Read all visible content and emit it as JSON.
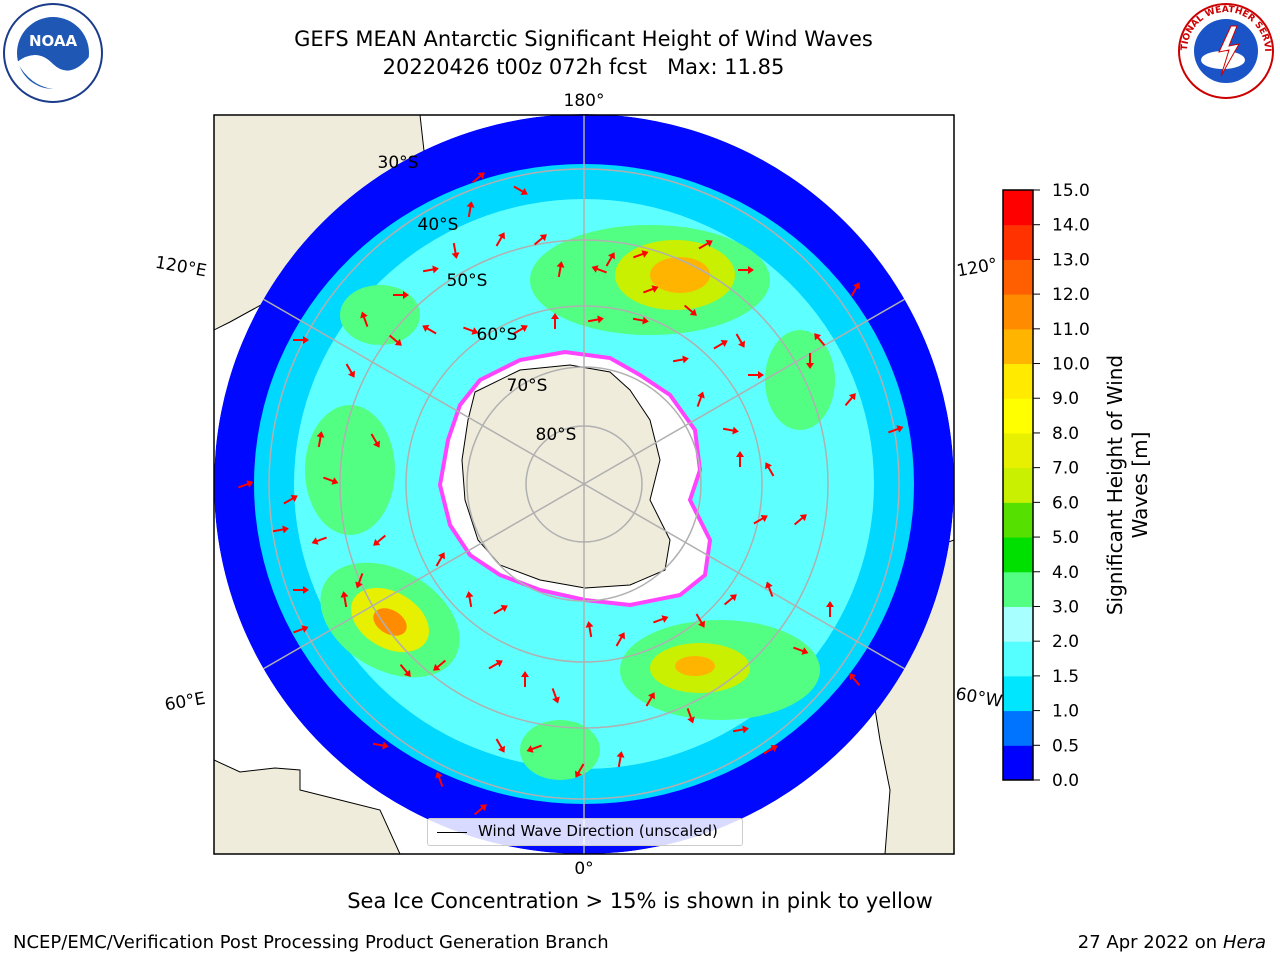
{
  "title": {
    "line1": "GEFS MEAN Antarctic Significant Height of Wind Waves",
    "line2": "20220426 t00z 072h fcst   Max: 11.85"
  },
  "logos": {
    "left": "NOAA",
    "right": "NATIONAL WEATHER SERVICE"
  },
  "map": {
    "projection": "south-polar-stereographic",
    "lon_labels": {
      "top": "180°",
      "bottom": "0°",
      "left_upper": "120°E",
      "left_lower": "60°E",
      "right_upper": "120°",
      "right_lower": "60°W"
    },
    "lat_labels": [
      "30°S",
      "40°S",
      "50°S",
      "60°S",
      "70°S",
      "80°S"
    ],
    "legend": "Wind Wave Direction (unscaled)",
    "colors": {
      "land": "#efecdc",
      "ocean_low": "#0000ff",
      "arrow": "#ff0000",
      "ice_edge": "#ff33ff",
      "grid": "#b0b0b0"
    }
  },
  "colorbar": {
    "label_line1": "Significant Height of Wind",
    "label_line2": "Waves [m]",
    "ticks": [
      "0.0",
      "0.5",
      "1.0",
      "1.5",
      "2.0",
      "3.0",
      "4.0",
      "5.0",
      "6.0",
      "7.0",
      "8.0",
      "9.0",
      "10.0",
      "11.0",
      "12.0",
      "13.0",
      "14.0",
      "15.0"
    ],
    "colors": [
      "#0000ff",
      "#0073ff",
      "#00e6ff",
      "#56ffff",
      "#a8ffff",
      "#52ff82",
      "#00e000",
      "#55e000",
      "#c8f000",
      "#e6f000",
      "#ffff00",
      "#ffea00",
      "#ffb400",
      "#ff8c00",
      "#ff5f00",
      "#ff3200",
      "#ff0000"
    ]
  },
  "caption": "Sea Ice Concentration > 15% is shown in pink to yellow",
  "footer": {
    "left": "NCEP/EMC/Verification Post Processing Product Generation Branch",
    "date": "27 Apr 2022 on ",
    "host": "Hera"
  }
}
